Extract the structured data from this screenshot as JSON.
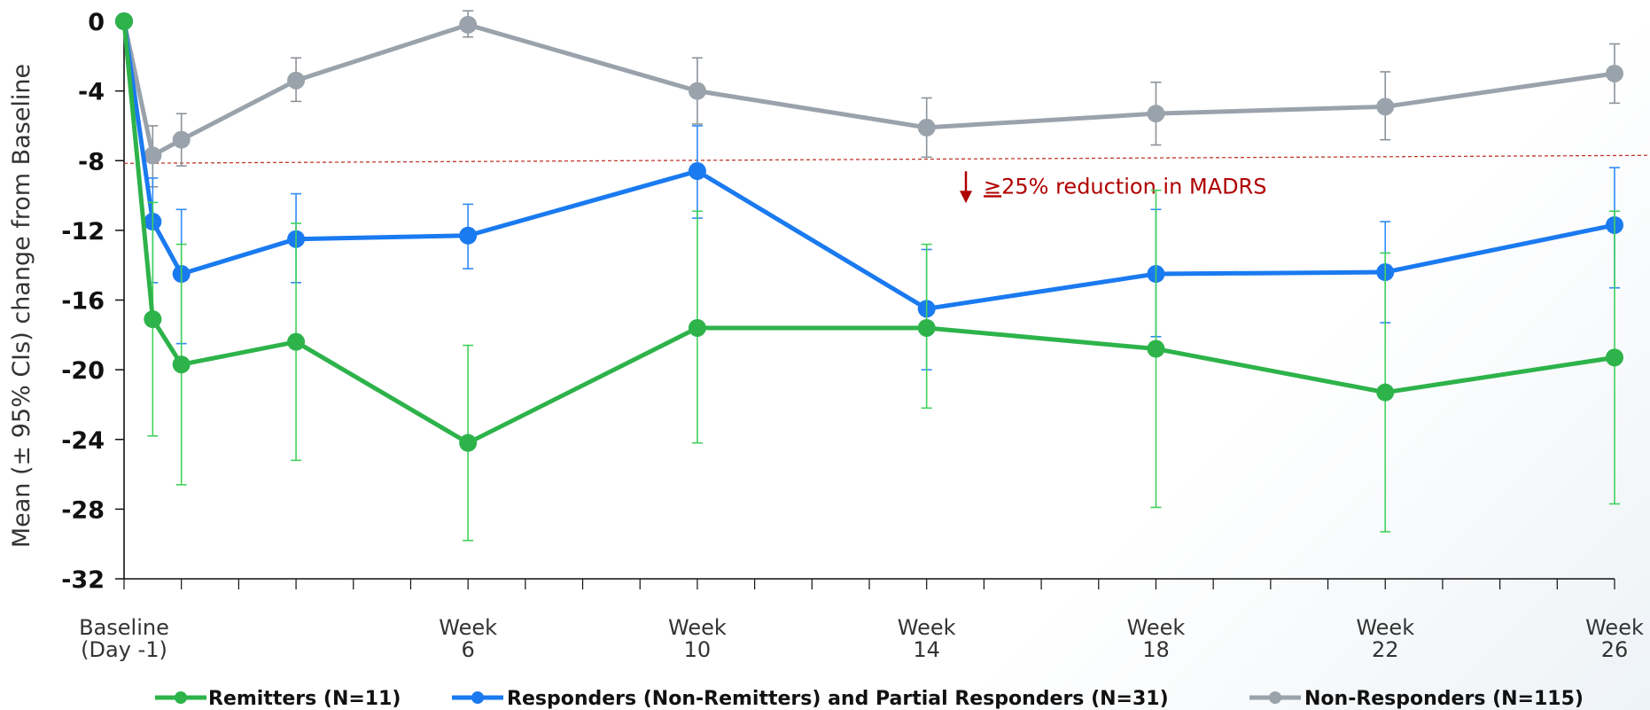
{
  "chart_data": {
    "type": "line",
    "ylabel": "Mean (± 95% CIs) change from Baseline",
    "ylim": [
      -32,
      0
    ],
    "yticks": [
      0,
      -4,
      -8,
      -12,
      -16,
      -20,
      -24,
      -28,
      -32
    ],
    "x_ticks": [
      {
        "x": 0,
        "line1": "Baseline",
        "line2": "(Day -1)"
      },
      {
        "x": 6,
        "line1": "Week",
        "line2": "6"
      },
      {
        "x": 10,
        "line1": "Week",
        "line2": "10"
      },
      {
        "x": 14,
        "line1": "Week",
        "line2": "14"
      },
      {
        "x": 18,
        "line1": "Week",
        "line2": "18"
      },
      {
        "x": 22,
        "line1": "Week",
        "line2": "22"
      },
      {
        "x": 26,
        "line1": "Week",
        "line2": "26"
      }
    ],
    "annotation": {
      "prefix": "≥",
      "text": "25% reduction in MADRS",
      "threshold": -8
    },
    "series": [
      {
        "name": "Remitters (N=11)",
        "color": "#2db34a",
        "error_color": "#42d15c",
        "points": [
          {
            "x": 0,
            "y": 0,
            "lo": 0,
            "hi": 0
          },
          {
            "x": 0.5,
            "y": -17.1,
            "lo": -23.8,
            "hi": -10.4
          },
          {
            "x": 1,
            "y": -19.7,
            "lo": -26.6,
            "hi": -12.8
          },
          {
            "x": 3,
            "y": -18.4,
            "lo": -25.2,
            "hi": -11.6
          },
          {
            "x": 6,
            "y": -24.2,
            "lo": -29.8,
            "hi": -18.6
          },
          {
            "x": 10,
            "y": -17.6,
            "lo": -24.2,
            "hi": -10.9
          },
          {
            "x": 14,
            "y": -17.6,
            "lo": -22.2,
            "hi": -12.8
          },
          {
            "x": 18,
            "y": -18.8,
            "lo": -27.9,
            "hi": -9.7
          },
          {
            "x": 22,
            "y": -21.3,
            "lo": -29.3,
            "hi": -13.3
          },
          {
            "x": 26,
            "y": -19.3,
            "lo": -27.7,
            "hi": -10.9
          }
        ]
      },
      {
        "name": "Responders (Non-Remitters) and Partial Responders (N=31)",
        "color": "#1a7af0",
        "error_color": "#2f8cf5",
        "points": [
          {
            "x": 0,
            "y": 0,
            "lo": 0,
            "hi": 0
          },
          {
            "x": 0.5,
            "y": -11.5,
            "lo": -15.0,
            "hi": -9.0
          },
          {
            "x": 1,
            "y": -14.5,
            "lo": -18.5,
            "hi": -10.8
          },
          {
            "x": 3,
            "y": -12.5,
            "lo": -15.0,
            "hi": -9.9
          },
          {
            "x": 6,
            "y": -12.3,
            "lo": -14.2,
            "hi": -10.5
          },
          {
            "x": 10,
            "y": -8.6,
            "lo": -11.3,
            "hi": -6.0
          },
          {
            "x": 14,
            "y": -16.5,
            "lo": -20.0,
            "hi": -13.1
          },
          {
            "x": 18,
            "y": -14.5,
            "lo": -18.1,
            "hi": -10.8
          },
          {
            "x": 22,
            "y": -14.4,
            "lo": -17.3,
            "hi": -11.5
          },
          {
            "x": 26,
            "y": -11.7,
            "lo": -15.3,
            "hi": -8.4
          }
        ]
      },
      {
        "name": "Non-Responders (N=115)",
        "color": "#9aa3ab",
        "error_color": "#8c9399",
        "points": [
          {
            "x": 0,
            "y": 0,
            "lo": 0,
            "hi": 0
          },
          {
            "x": 0.5,
            "y": -7.7,
            "lo": -9.5,
            "hi": -6.0
          },
          {
            "x": 1,
            "y": -6.8,
            "lo": -8.3,
            "hi": -5.3
          },
          {
            "x": 3,
            "y": -3.4,
            "lo": -4.6,
            "hi": -2.1
          },
          {
            "x": 6,
            "y": -0.2,
            "lo": -0.9,
            "hi": 0.6
          },
          {
            "x": 10,
            "y": -4.0,
            "lo": -5.9,
            "hi": -2.1
          },
          {
            "x": 14,
            "y": -6.1,
            "lo": -7.8,
            "hi": -4.4
          },
          {
            "x": 18,
            "y": -5.3,
            "lo": -7.1,
            "hi": -3.5
          },
          {
            "x": 22,
            "y": -4.9,
            "lo": -6.8,
            "hi": -2.9
          },
          {
            "x": 26,
            "y": -3.0,
            "lo": -4.7,
            "hi": -1.3
          }
        ]
      }
    ]
  }
}
